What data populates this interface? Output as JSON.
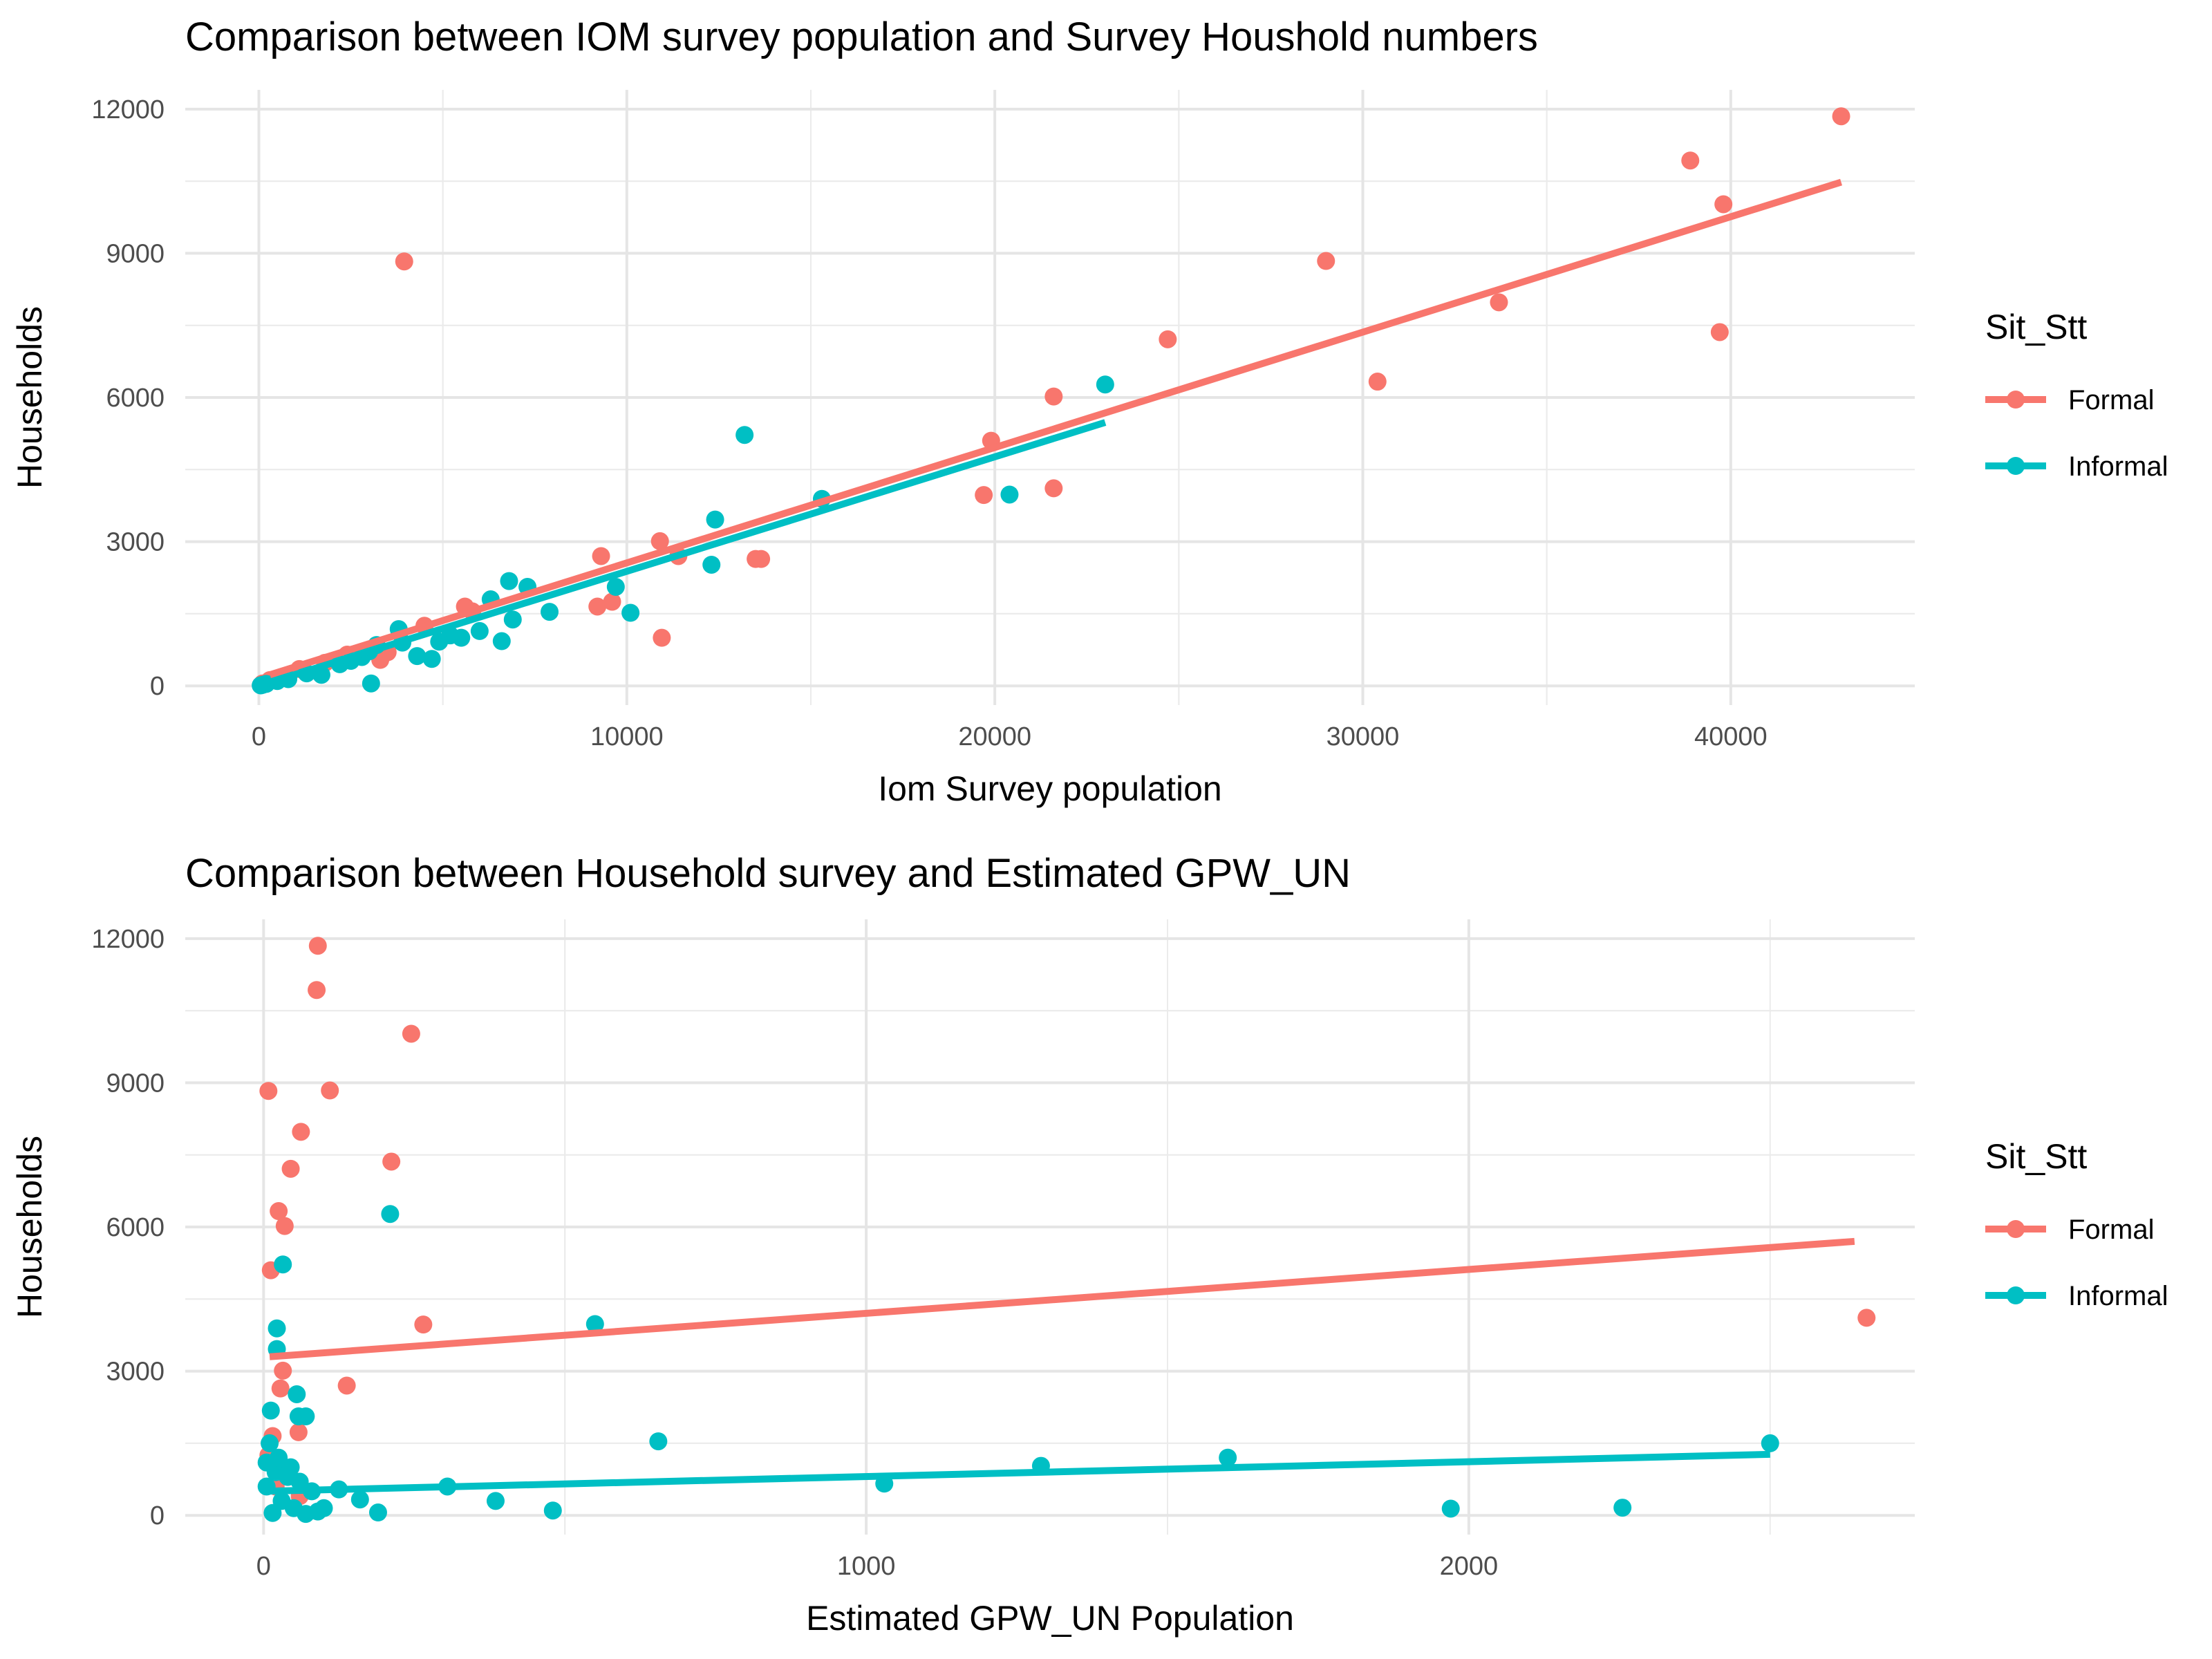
{
  "chart_data": [
    {
      "type": "scatter",
      "title": "Comparison between IOM survey population and Survey Houshold numbers",
      "xlabel": "Iom Survey population",
      "ylabel": "Households",
      "xlim": [
        -2000,
        45000
      ],
      "ylim": [
        -400,
        12400
      ],
      "xticks": [
        0,
        10000,
        20000,
        30000,
        40000
      ],
      "xtick_labels": [
        "0",
        "10000",
        "20000",
        "30000",
        "40000"
      ],
      "yticks": [
        0,
        3000,
        6000,
        9000,
        12000
      ],
      "ytick_labels": [
        "0",
        "3000",
        "6000",
        "9000",
        "12000"
      ],
      "grid": true,
      "legend": {
        "title": "Sit_Stt",
        "position": "right"
      },
      "series": [
        {
          "name": "Formal",
          "color": "#F8766D",
          "points": [
            [
              3950,
              8830
            ],
            [
              43000,
              11850
            ],
            [
              38900,
              10930
            ],
            [
              39800,
              10020
            ],
            [
              29000,
              8840
            ],
            [
              33700,
              7980
            ],
            [
              39700,
              7360
            ],
            [
              24700,
              7210
            ],
            [
              30400,
              6330
            ],
            [
              21600,
              6020
            ],
            [
              19900,
              5100
            ],
            [
              21600,
              4110
            ],
            [
              19700,
              3970
            ],
            [
              10900,
              3010
            ],
            [
              9300,
              2700
            ],
            [
              11400,
              2700
            ],
            [
              13500,
              2640
            ],
            [
              13650,
              2640
            ],
            [
              9600,
              1750
            ],
            [
              9200,
              1650
            ],
            [
              10950,
              1000
            ],
            [
              5600,
              1650
            ],
            [
              5800,
              1550
            ],
            [
              4500,
              1250
            ],
            [
              3500,
              700
            ],
            [
              3300,
              540
            ],
            [
              2400,
              650
            ],
            [
              1800,
              480
            ],
            [
              1100,
              350
            ],
            [
              600,
              180
            ],
            [
              300,
              120
            ],
            [
              100,
              50
            ]
          ],
          "trend": [
            [
              300,
              230
            ],
            [
              43000,
              10480
            ]
          ]
        },
        {
          "name": "Informal",
          "color": "#00BFC4",
          "points": [
            [
              23000,
              6270
            ],
            [
              13200,
              5220
            ],
            [
              15300,
              3890
            ],
            [
              20400,
              3980
            ],
            [
              12400,
              3460
            ],
            [
              12300,
              2520
            ],
            [
              9700,
              2060
            ],
            [
              10100,
              1520
            ],
            [
              7300,
              2060
            ],
            [
              6800,
              2180
            ],
            [
              6300,
              1800
            ],
            [
              7900,
              1540
            ],
            [
              6900,
              1380
            ],
            [
              6000,
              1140
            ],
            [
              5500,
              1000
            ],
            [
              5200,
              1050
            ],
            [
              4900,
              920
            ],
            [
              6600,
              930
            ],
            [
              4700,
              560
            ],
            [
              4300,
              620
            ],
            [
              3900,
              900
            ],
            [
              3800,
              1180
            ],
            [
              3200,
              850
            ],
            [
              3000,
              720
            ],
            [
              2800,
              600
            ],
            [
              2500,
              520
            ],
            [
              2200,
              450
            ],
            [
              1700,
              230
            ],
            [
              1300,
              260
            ],
            [
              800,
              140
            ],
            [
              500,
              100
            ],
            [
              200,
              40
            ],
            [
              100,
              20
            ],
            [
              50,
              10
            ],
            [
              3050,
              50
            ]
          ],
          "trend": [
            [
              0,
              0
            ],
            [
              23000,
              5480
            ]
          ]
        }
      ]
    },
    {
      "type": "scatter",
      "title": "Comparison between Household survey and Estimated GPW_UN",
      "xlabel": "Estimated GPW_UN Population",
      "ylabel": "Households",
      "xlim": [
        -130,
        2740
      ],
      "ylim": [
        -400,
        12400
      ],
      "xticks": [
        0,
        1000,
        2000
      ],
      "xtick_labels": [
        "0",
        "1000",
        "2000"
      ],
      "yticks": [
        0,
        3000,
        6000,
        9000,
        12000
      ],
      "ytick_labels": [
        "0",
        "3000",
        "6000",
        "9000",
        "12000"
      ],
      "grid": true,
      "legend": {
        "title": "Sit_Stt",
        "position": "right"
      },
      "series": [
        {
          "name": "Formal",
          "color": "#F8766D",
          "points": [
            [
              90,
              11850
            ],
            [
              88,
              10930
            ],
            [
              245,
              10020
            ],
            [
              8,
              8830
            ],
            [
              110,
              8840
            ],
            [
              62,
              7980
            ],
            [
              212,
              7360
            ],
            [
              45,
              7210
            ],
            [
              25,
              6330
            ],
            [
              35,
              6020
            ],
            [
              12,
              5100
            ],
            [
              2660,
              4110
            ],
            [
              265,
              3970
            ],
            [
              32,
              3010
            ],
            [
              138,
              2700
            ],
            [
              28,
              2640
            ],
            [
              58,
              1730
            ],
            [
              15,
              1650
            ],
            [
              8,
              1250
            ],
            [
              40,
              900
            ],
            [
              20,
              600
            ],
            [
              60,
              400
            ]
          ],
          "trend": [
            [
              10,
              3300
            ],
            [
              2640,
              5700
            ]
          ]
        },
        {
          "name": "Informal",
          "color": "#00BFC4",
          "points": [
            [
              210,
              6270
            ],
            [
              32,
              5220
            ],
            [
              22,
              3890
            ],
            [
              550,
              3980
            ],
            [
              22,
              3460
            ],
            [
              55,
              2520
            ],
            [
              58,
              2060
            ],
            [
              70,
              2060
            ],
            [
              12,
              2180
            ],
            [
              10,
              1500
            ],
            [
              655,
              1540
            ],
            [
              1600,
              1200
            ],
            [
              2500,
              1500
            ],
            [
              1290,
              1030
            ],
            [
              1030,
              660
            ],
            [
              305,
              600
            ],
            [
              385,
              300
            ],
            [
              160,
              330
            ],
            [
              125,
              540
            ],
            [
              480,
              100
            ],
            [
              190,
              60
            ],
            [
              1970,
              140
            ],
            [
              2255,
              160
            ],
            [
              5,
              1100
            ],
            [
              20,
              900
            ],
            [
              40,
              800
            ],
            [
              60,
              700
            ],
            [
              80,
              500
            ],
            [
              30,
              300
            ],
            [
              50,
              150
            ],
            [
              15,
              50
            ],
            [
              70,
              30
            ],
            [
              100,
              150
            ],
            [
              5,
              600
            ],
            [
              25,
              1200
            ],
            [
              45,
              1000
            ],
            [
              90,
              80
            ]
          ],
          "trend": [
            [
              0,
              500
            ],
            [
              2500,
              1270
            ]
          ]
        }
      ]
    }
  ]
}
